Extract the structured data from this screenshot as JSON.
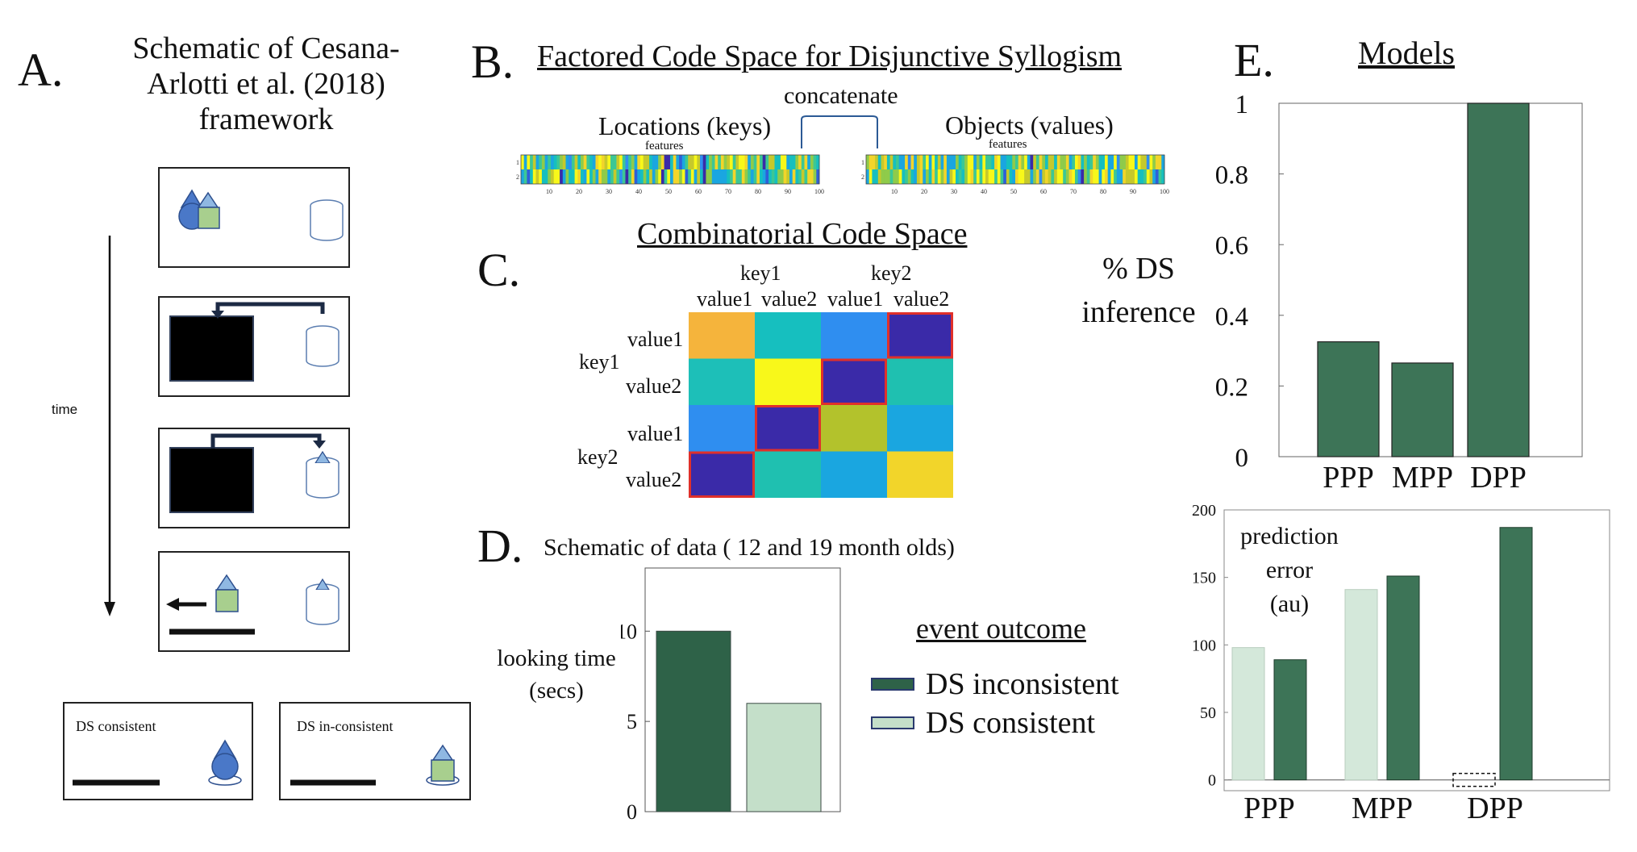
{
  "panelA": {
    "letter": "A.",
    "title": [
      "Schematic of Cesana-",
      "Arlotti et al. (2018)",
      "framework"
    ],
    "time_label": "time",
    "consistent_label": "DS consistent",
    "inconsistent_label": "DS in-consistent"
  },
  "panelB": {
    "letter": "B.",
    "title": "Factored Code Space for Disjunctive Syllogism",
    "concat_label": "concatenate",
    "locations_label": "Locations (keys)",
    "objects_label": "Objects (values)",
    "features_label": "features",
    "tick_labels": [
      "10",
      "20",
      "30",
      "40",
      "50",
      "60",
      "70",
      "80",
      "90",
      "100"
    ],
    "row_labels": [
      "1",
      "2"
    ]
  },
  "panelC": {
    "letter": "C.",
    "title": "Combinatorial Code Space",
    "col_group_labels": [
      "key1",
      "key2"
    ],
    "col_labels": [
      "value1",
      "value2",
      "value1",
      "value2"
    ],
    "row_group_labels": [
      "key1",
      "key2"
    ],
    "row_labels": [
      "value1",
      "value2",
      "value1",
      "value2"
    ],
    "matrix_colors": [
      [
        "#f5b43c",
        "#16bfbf",
        "#2f8ef0",
        "#3a2aa8"
      ],
      [
        "#1dbfb8",
        "#f8f81a",
        "#3a2aa8",
        "#1fc0b0"
      ],
      [
        "#2f8ef0",
        "#3a2aa8",
        "#b3c22c",
        "#1aa6e0"
      ],
      [
        "#3a2aa8",
        "#1fc0b0",
        "#1aa6e0",
        "#f2d52a"
      ]
    ],
    "highlight_color": "#e0302a"
  },
  "panelD": {
    "letter": "D.",
    "title": "Schematic of data ( 12 and 19 month olds)",
    "ylabel_lines": [
      "looking time",
      "(secs)"
    ],
    "legend_title": "event outcome",
    "legend_items": [
      {
        "label": "DS inconsistent",
        "color": "#2e6248"
      },
      {
        "label": "DS consistent",
        "color": "#c4dfc9"
      }
    ]
  },
  "panelE": {
    "letter": "E.",
    "title": "Models",
    "inference_label": [
      "% DS",
      "inference"
    ],
    "error_label": [
      "prediction",
      "error",
      "(au)"
    ]
  },
  "chart_data": [
    {
      "id": "looking-time",
      "type": "bar",
      "categories": [
        "DS inconsistent",
        "DS consistent"
      ],
      "values": [
        10,
        6
      ],
      "colors": [
        "#2e6248",
        "#c4dfc9"
      ],
      "ylim": [
        0,
        13.5
      ],
      "yticks": [
        0,
        5,
        10
      ],
      "ylabel": "looking time (secs)"
    },
    {
      "id": "ds-inference",
      "type": "bar",
      "categories": [
        "PPP",
        "MPP",
        "DPP"
      ],
      "values": [
        0.325,
        0.265,
        1.0
      ],
      "color": "#3d7457",
      "ylim": [
        0,
        1
      ],
      "yticks": [
        "0",
        "0.2",
        "0.4",
        "0.6",
        "0.8",
        "1"
      ],
      "ylabel": "% DS inference"
    },
    {
      "id": "prediction-error",
      "type": "bar",
      "categories": [
        "PPP",
        "MPP",
        "DPP"
      ],
      "series": [
        {
          "name": "DS consistent",
          "values": [
            98,
            141,
            0
          ],
          "color": "#d4e8da"
        },
        {
          "name": "DS inconsistent",
          "values": [
            89,
            151,
            187
          ],
          "color": "#3d7457"
        }
      ],
      "ylim": [
        -8,
        200
      ],
      "yticks": [
        0,
        50,
        100,
        150,
        200
      ],
      "ylabel": "prediction error (au)"
    }
  ]
}
